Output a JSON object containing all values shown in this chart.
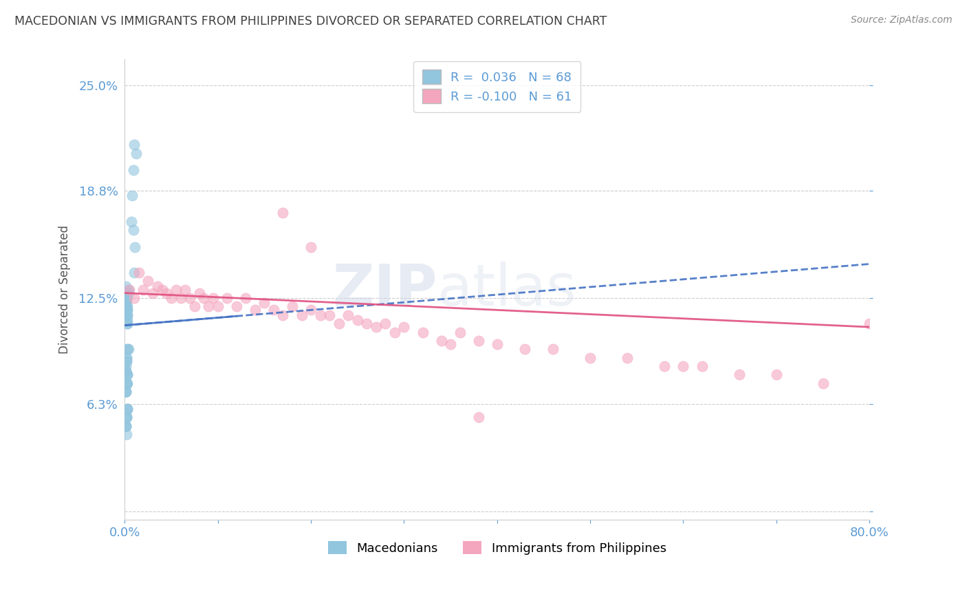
{
  "title": "MACEDONIAN VS IMMIGRANTS FROM PHILIPPINES DIVORCED OR SEPARATED CORRELATION CHART",
  "source": "Source: ZipAtlas.com",
  "ylabel": "Divorced or Separated",
  "xlim": [
    0.0,
    0.8
  ],
  "ylim": [
    -0.005,
    0.265
  ],
  "ytick_positions": [
    0.0,
    0.063,
    0.125,
    0.188,
    0.25
  ],
  "ytick_labels": [
    "",
    "6.3%",
    "12.5%",
    "18.8%",
    "25.0%"
  ],
  "xtick_positions": [
    0.0,
    0.1,
    0.2,
    0.3,
    0.4,
    0.5,
    0.6,
    0.7,
    0.8
  ],
  "xtick_labels": [
    "0.0%",
    "",
    "",
    "",
    "",
    "",
    "",
    "",
    "80.0%"
  ],
  "macedonian_R": 0.036,
  "macedonian_N": 68,
  "philippines_R": -0.1,
  "philippines_N": 61,
  "blue_scatter_color": "#92c5de",
  "pink_scatter_color": "#f4a6be",
  "blue_line_color": "#4472c4",
  "pink_line_color": "#e05080",
  "axis_label_color": "#5b9bd5",
  "title_color": "#404040",
  "source_color": "#888888",
  "legend_label_blue": "Macedonians",
  "legend_label_pink": "Immigrants from Philippines",
  "watermark_zip": "ZIP",
  "watermark_atlas": "atlas",
  "grid_color": "#cccccc",
  "background_color": "#ffffff",
  "macedonian_x": [
    0.002,
    0.004,
    0.001,
    0.003,
    0.002,
    0.003,
    0.002,
    0.004,
    0.001,
    0.002,
    0.003,
    0.002,
    0.001,
    0.003,
    0.002,
    0.001,
    0.003,
    0.002,
    0.001,
    0.002,
    0.003,
    0.001,
    0.002,
    0.003,
    0.002,
    0.001,
    0.003,
    0.002,
    0.001,
    0.002,
    0.004,
    0.002,
    0.001,
    0.003,
    0.002,
    0.001,
    0.003,
    0.002,
    0.001,
    0.002,
    0.003,
    0.002,
    0.001,
    0.002,
    0.003,
    0.001,
    0.002,
    0.003,
    0.001,
    0.002,
    0.003,
    0.002,
    0.001,
    0.003,
    0.002,
    0.001,
    0.003,
    0.002,
    0.001,
    0.002,
    0.01,
    0.009,
    0.008,
    0.012,
    0.007,
    0.011,
    0.01,
    0.009
  ],
  "macedonian_y": [
    0.125,
    0.128,
    0.132,
    0.118,
    0.122,
    0.115,
    0.12,
    0.13,
    0.112,
    0.125,
    0.118,
    0.128,
    0.12,
    0.115,
    0.125,
    0.118,
    0.11,
    0.125,
    0.115,
    0.128,
    0.12,
    0.118,
    0.125,
    0.112,
    0.125,
    0.118,
    0.11,
    0.125,
    0.115,
    0.128,
    0.095,
    0.09,
    0.085,
    0.095,
    0.088,
    0.082,
    0.095,
    0.088,
    0.082,
    0.09,
    0.075,
    0.08,
    0.07,
    0.075,
    0.08,
    0.07,
    0.075,
    0.08,
    0.07,
    0.075,
    0.06,
    0.055,
    0.05,
    0.06,
    0.055,
    0.05,
    0.06,
    0.055,
    0.05,
    0.045,
    0.215,
    0.2,
    0.185,
    0.21,
    0.17,
    0.155,
    0.14,
    0.165
  ],
  "philippines_x": [
    0.005,
    0.01,
    0.015,
    0.02,
    0.025,
    0.03,
    0.035,
    0.04,
    0.045,
    0.05,
    0.055,
    0.06,
    0.065,
    0.07,
    0.075,
    0.08,
    0.085,
    0.09,
    0.095,
    0.1,
    0.11,
    0.12,
    0.13,
    0.14,
    0.15,
    0.16,
    0.17,
    0.18,
    0.19,
    0.2,
    0.21,
    0.22,
    0.23,
    0.24,
    0.25,
    0.26,
    0.27,
    0.28,
    0.29,
    0.3,
    0.32,
    0.34,
    0.36,
    0.38,
    0.4,
    0.43,
    0.46,
    0.5,
    0.54,
    0.58,
    0.62,
    0.66,
    0.7,
    0.75,
    0.8,
    0.6,
    0.17,
    0.2,
    0.35,
    0.38,
    0.85
  ],
  "philippines_y": [
    0.13,
    0.125,
    0.14,
    0.13,
    0.135,
    0.128,
    0.132,
    0.13,
    0.128,
    0.125,
    0.13,
    0.125,
    0.13,
    0.125,
    0.12,
    0.128,
    0.125,
    0.12,
    0.125,
    0.12,
    0.125,
    0.12,
    0.125,
    0.118,
    0.122,
    0.118,
    0.115,
    0.12,
    0.115,
    0.118,
    0.115,
    0.115,
    0.11,
    0.115,
    0.112,
    0.11,
    0.108,
    0.11,
    0.105,
    0.108,
    0.105,
    0.1,
    0.105,
    0.1,
    0.098,
    0.095,
    0.095,
    0.09,
    0.09,
    0.085,
    0.085,
    0.08,
    0.08,
    0.075,
    0.11,
    0.085,
    0.175,
    0.155,
    0.098,
    0.055,
    0.11
  ],
  "blue_trend_x": [
    0.0,
    0.8
  ],
  "blue_trend_y": [
    0.109,
    0.145
  ],
  "pink_trend_x": [
    0.0,
    0.8
  ],
  "pink_trend_y": [
    0.128,
    0.108
  ]
}
